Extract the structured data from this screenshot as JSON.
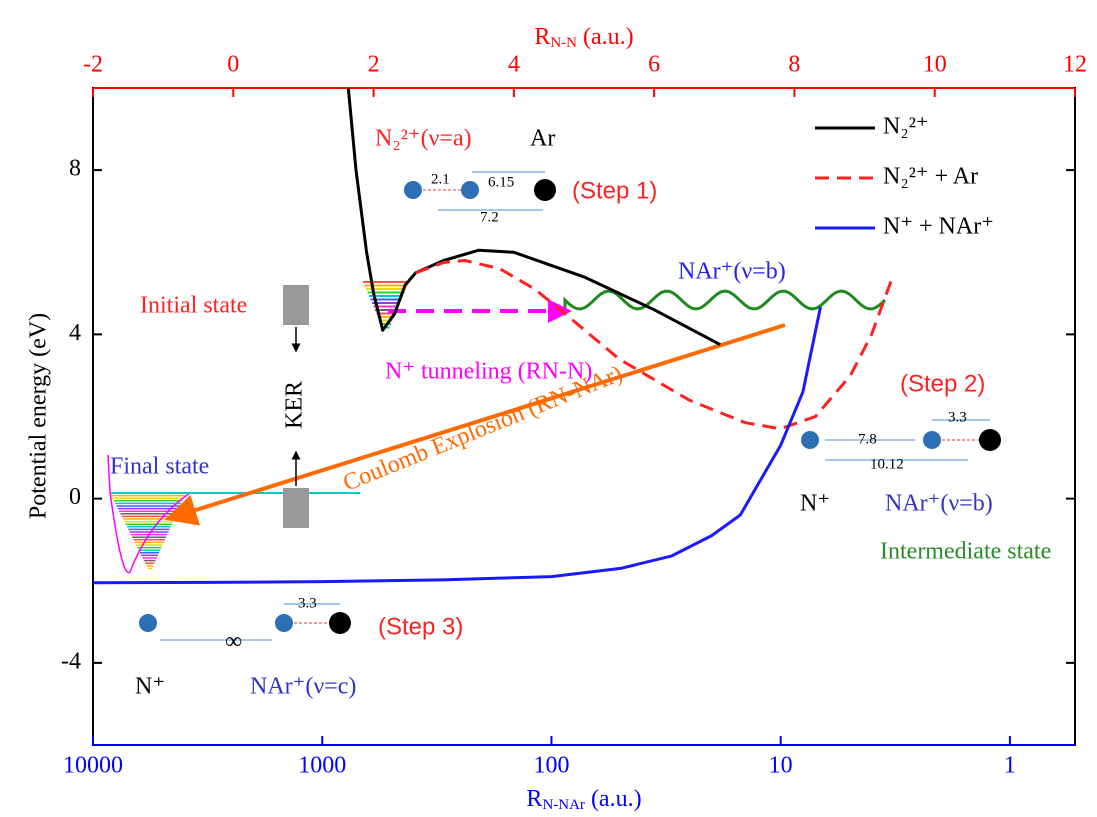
{
  "chart_data": {
    "type": "line",
    "ylabel": "Potential energy (eV)",
    "x2label": {
      "base": "R",
      "sub": "N-N",
      "unit": "(a.u.)"
    },
    "xlabel": {
      "base": "R",
      "sub": "N-NAr",
      "unit": "(a.u.)"
    },
    "ylim": [
      -6,
      10
    ],
    "yticks": [
      -4,
      0,
      4,
      8
    ],
    "x2lim": [
      -2,
      12
    ],
    "x2ticks": [
      -2,
      0,
      2,
      4,
      6,
      8,
      10,
      12
    ],
    "xlim": [
      10000,
      0.52
    ],
    "xticks": [
      10000,
      1000,
      100,
      10,
      1
    ],
    "xscale": "log",
    "legend": "upper right",
    "series": [
      {
        "name": "N₂²⁺",
        "color": "#000000",
        "dash": false,
        "axis": "x2",
        "x": [
          1.64,
          1.75,
          1.9,
          2.0,
          2.13,
          2.3,
          2.45,
          2.6,
          3.0,
          3.5,
          4.0,
          5.0,
          6.0,
          6.94
        ],
        "values": [
          10,
          8,
          6,
          5,
          4.1,
          4.5,
          5.2,
          5.5,
          5.8,
          6.05,
          6.0,
          5.4,
          4.6,
          3.75
        ]
      },
      {
        "name": "N₂²⁺ + Ar",
        "color": "#ff2020",
        "dash": true,
        "axis": "x2",
        "x": [
          2.6,
          3.0,
          3.3,
          3.8,
          4.3,
          4.8,
          5.5,
          6.5,
          7.3,
          7.8,
          8.3,
          8.8,
          9.1,
          9.4
        ],
        "values": [
          5.5,
          5.75,
          5.8,
          5.6,
          5.1,
          4.4,
          3.4,
          2.4,
          1.85,
          1.7,
          2.0,
          3.0,
          4.0,
          5.4
        ]
      },
      {
        "name": "N⁺ + NAr⁺",
        "color": "#1a1aff",
        "dash": false,
        "axis": "x",
        "x": [
          10000,
          3000,
          1000,
          300,
          100,
          50,
          30,
          20,
          15,
          10,
          8,
          6.7
        ],
        "values": [
          -2.05,
          -2.04,
          -2.02,
          -1.98,
          -1.9,
          -1.7,
          -1.4,
          -0.9,
          -0.4,
          1.3,
          2.6,
          4.67
        ]
      }
    ],
    "annotations": {
      "state_a": "N₂²⁺(ν=a)",
      "ar": "Ar",
      "step1": "(Step 1)",
      "d21": "2.1",
      "d615": "6.15",
      "d72": "7.2",
      "nar_b": "NAr⁺(ν=b)",
      "initial": "Initial state",
      "tunneling": "N⁺ tunneling  (RN-N)",
      "ker": "KER",
      "final": "Final state",
      "coulomb": "Coulomb Explosion (RN-NAr)",
      "step2": "(Step 2)",
      "d78": "7.8",
      "d33a": "3.3",
      "d1012": "10.12",
      "n_plus_2": "N⁺",
      "nar_b2": "NAr⁺(ν=b)",
      "intermediate": "Intermediate state",
      "step3": "(Step 3)",
      "d33b": "3.3",
      "inf": "∞",
      "n_plus_3": "N⁺",
      "nar_c": "NAr⁺(ν=c)"
    }
  }
}
